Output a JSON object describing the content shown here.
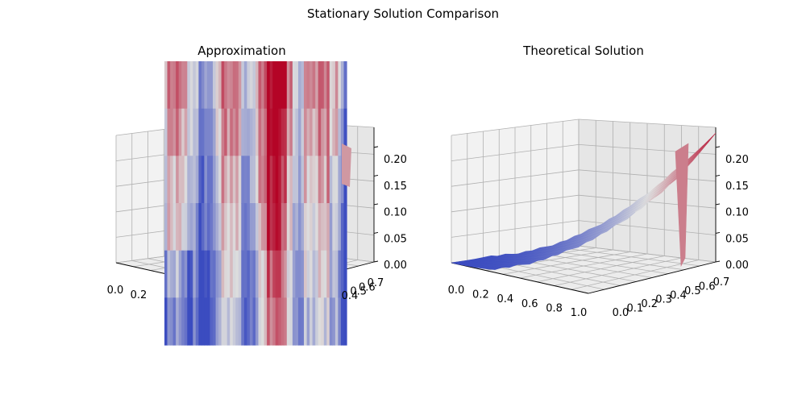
{
  "figure": {
    "title": "Stationary Solution Comparison"
  },
  "chart_data": [
    {
      "type": "surface",
      "title": "Approximation",
      "colormap": "coolwarm",
      "x_ticks": [
        "0.0",
        "0.2"
      ],
      "y_ticks": [
        "0.4",
        "0.5",
        "0.6",
        "0.7"
      ],
      "z_ticks": [
        "0.00",
        "0.05",
        "0.10",
        "0.15",
        "0.20"
      ],
      "zlim": [
        0,
        0.235
      ],
      "grid": true
    },
    {
      "type": "surface",
      "title": "Theoretical Solution",
      "colormap": "coolwarm",
      "x_ticks": [
        "0.0",
        "0.2",
        "0.4",
        "0.6",
        "0.8",
        "1.0"
      ],
      "y_ticks": [
        "0.0",
        "0.1",
        "0.2",
        "0.3",
        "0.4",
        "0.5",
        "0.6",
        "0.7"
      ],
      "z_ticks": [
        "0.00",
        "0.05",
        "0.10",
        "0.15",
        "0.20"
      ],
      "xlim": [
        0,
        1.0
      ],
      "ylim": [
        0,
        0.7
      ],
      "zlim": [
        0,
        0.235
      ],
      "grid": true
    }
  ],
  "colors": {
    "cool": "#3b4cc0",
    "neutral": "#dddddd",
    "warm": "#b40426",
    "pane": "#f2f2f2"
  }
}
